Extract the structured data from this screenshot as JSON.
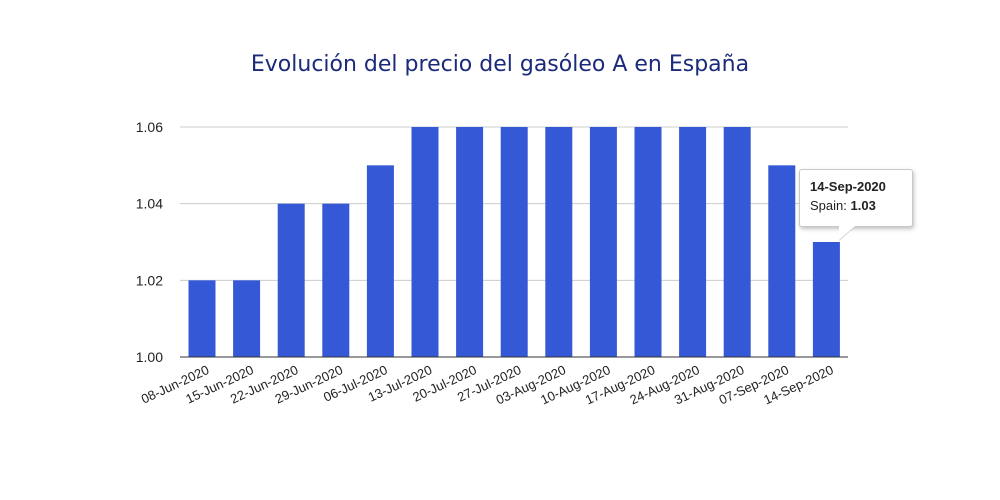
{
  "chart_data": {
    "type": "bar",
    "title": "Evolución del precio del gasóleo A en España",
    "xlabel": "",
    "ylabel": "",
    "ylim": [
      1.0,
      1.06
    ],
    "yticks": [
      "1.00",
      "1.02",
      "1.04",
      "1.06"
    ],
    "categories": [
      "08-Jun-2020",
      "15-Jun-2020",
      "22-Jun-2020",
      "29-Jun-2020",
      "06-Jul-2020",
      "13-Jul-2020",
      "20-Jul-2020",
      "27-Jul-2020",
      "03-Aug-2020",
      "10-Aug-2020",
      "17-Aug-2020",
      "24-Aug-2020",
      "31-Aug-2020",
      "07-Sep-2020",
      "14-Sep-2020"
    ],
    "series": [
      {
        "name": "Spain",
        "values": [
          1.02,
          1.02,
          1.04,
          1.04,
          1.05,
          1.06,
          1.06,
          1.06,
          1.06,
          1.06,
          1.06,
          1.06,
          1.06,
          1.05,
          1.03
        ]
      }
    ],
    "bar_color": "#3558d6",
    "grid": true,
    "legend": "none"
  },
  "tooltip": {
    "date": "14-Sep-2020",
    "series_label": "Spain:",
    "value": "1.03"
  }
}
